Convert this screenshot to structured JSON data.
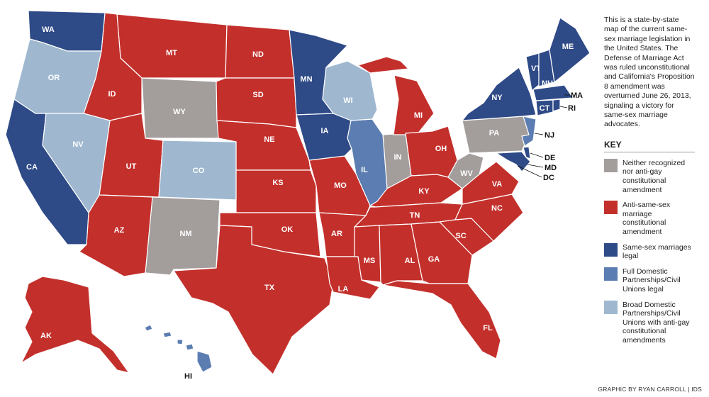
{
  "description": "This is a state-by-state map of the current same-sex marriage legislation in the United States. The Defense of Marriage Act was ruled unconstitutional and California's Proposition 8 amendment was overturned June 26, 2013, signaling a victory for same-sex marriage advocates.",
  "key": {
    "title": "KEY",
    "items": [
      {
        "label": "Neither recognized nor anti-gay constitutional amendment",
        "color": "#a39d9c",
        "states": [
          "WY",
          "NM",
          "IN",
          "PA",
          "WV"
        ]
      },
      {
        "label": "Anti-same-sex marriage constitutional amendment",
        "color": "#c3302c",
        "states": [
          "MT",
          "ID",
          "ND",
          "SD",
          "NE",
          "UT",
          "KS",
          "AZ",
          "OK",
          "TX",
          "MO",
          "AK",
          "MI",
          "OH",
          "KY",
          "TN",
          "AR",
          "LA",
          "MS",
          "AL",
          "GA",
          "SC",
          "NC",
          "VA",
          "FL"
        ]
      },
      {
        "label": "Same-sex marriages legal",
        "color": "#2e4a87",
        "states": [
          "WA",
          "CA",
          "MN",
          "IA",
          "NY",
          "VT",
          "NH",
          "ME",
          "MA",
          "CT",
          "RI",
          "DE",
          "MD",
          "DC"
        ]
      },
      {
        "label": "Full Domestic Partnerships/Civil Unions legal",
        "color": "#5b7db1",
        "states": [
          "IL",
          "NJ",
          "HI"
        ]
      },
      {
        "label": "Broad Domestic Partnerships/Civil Unions with anti-gay constitutional amendments",
        "color": "#9fb8d0",
        "states": [
          "OR",
          "NV",
          "CO",
          "WI"
        ]
      }
    ]
  },
  "credit": "GRAPHIC BY RYAN CARROLL | IDS"
}
